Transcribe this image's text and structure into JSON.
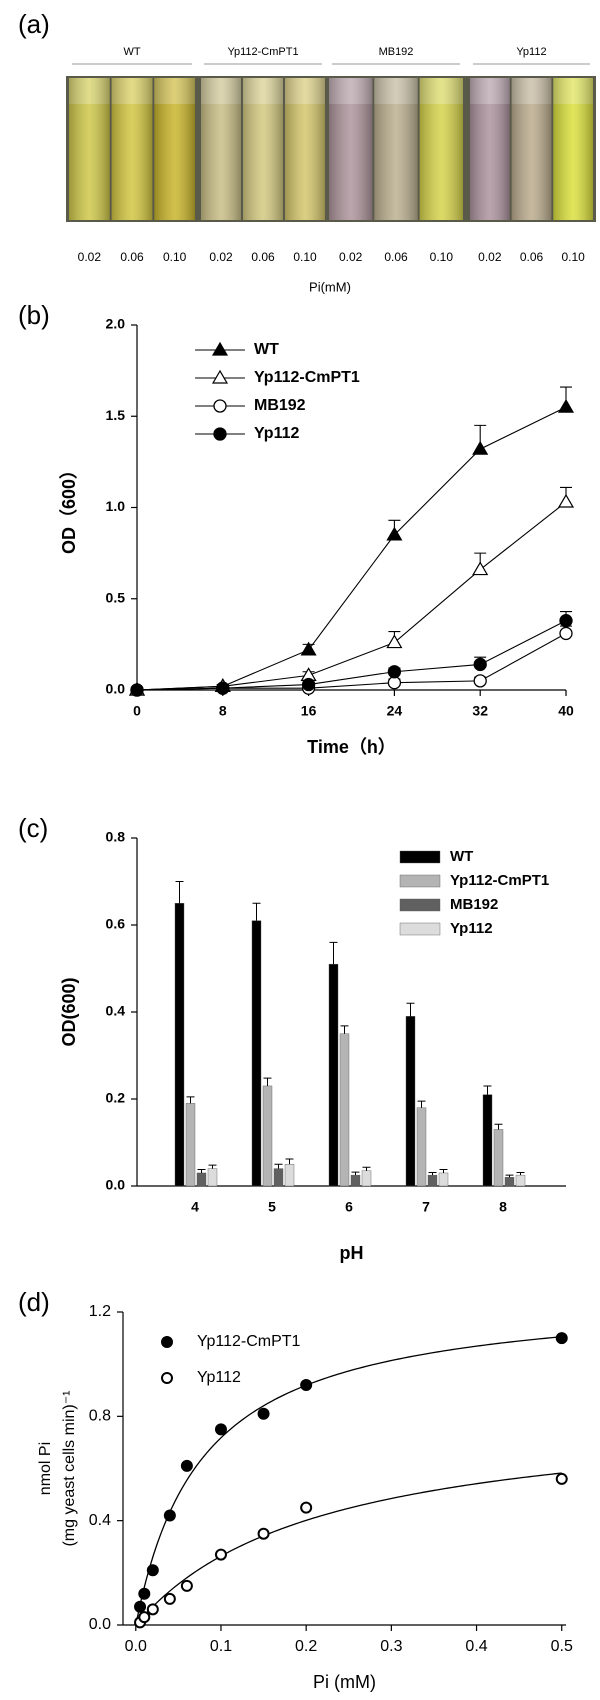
{
  "photo": {
    "panel": "(a)",
    "groups": [
      {
        "name": "WT",
        "concentrations": [
          "0.02",
          "0.06",
          "0.10"
        ]
      },
      {
        "name": "Yp112-CmPT1",
        "concentrations": [
          "0.02",
          "0.06",
          "0.10"
        ]
      },
      {
        "name": "MB192",
        "concentrations": [
          "0.02",
          "0.06",
          "0.10"
        ]
      },
      {
        "name": "Yp112",
        "concentrations": [
          "0.02",
          "0.06",
          "0.10"
        ]
      }
    ],
    "xlabel": "Pi(mM)"
  },
  "chart_data": [
    {
      "type": "line",
      "panel": "(b)",
      "xlabel": "Time（h）",
      "ylabel": "OD（600）",
      "x": [
        0,
        8,
        16,
        24,
        32,
        40
      ],
      "xlim": [
        0,
        40
      ],
      "xticks": [
        0,
        8,
        16,
        24,
        32,
        40
      ],
      "ylim": [
        0,
        2
      ],
      "yticks": [
        {
          "value": 0,
          "label": "0.0"
        },
        {
          "value": 0.5,
          "label": "0.5"
        },
        {
          "value": 1,
          "label": "1.0"
        },
        {
          "value": 1.5,
          "label": "1.5"
        },
        {
          "value": 2,
          "label": "2.0"
        }
      ],
      "series": [
        {
          "name": "WT",
          "color": "#000000",
          "marker": "triangle",
          "filled": true,
          "values": [
            0,
            0.02,
            0.22,
            0.85,
            1.32,
            1.55
          ],
          "errors": [
            0,
            0.01,
            0.03,
            0.08,
            0.13,
            0.11
          ]
        },
        {
          "name": "Yp112-CmPT1",
          "color": "#000000",
          "marker": "triangle",
          "filled": false,
          "values": [
            0,
            0.02,
            0.08,
            0.26,
            0.66,
            1.03
          ],
          "errors": [
            0,
            0.01,
            0.02,
            0.06,
            0.09,
            0.08
          ]
        },
        {
          "name": "MB192",
          "color": "#000000",
          "marker": "circle",
          "filled": false,
          "values": [
            0,
            0.01,
            0.01,
            0.04,
            0.05,
            0.31
          ],
          "errors": [
            0,
            0,
            0.01,
            0.02,
            0.02,
            0.04
          ]
        },
        {
          "name": "Yp112",
          "color": "#000000",
          "marker": "circle",
          "filled": true,
          "values": [
            0,
            0.01,
            0.03,
            0.1,
            0.14,
            0.38
          ],
          "errors": [
            0,
            0,
            0.01,
            0.02,
            0.04,
            0.05
          ]
        }
      ]
    },
    {
      "type": "bar",
      "panel": "(c)",
      "xlabel": "pH",
      "ylabel": "OD(600)",
      "categories": [
        "4",
        "5",
        "6",
        "7",
        "8"
      ],
      "ylim": [
        0,
        0.8
      ],
      "yticks": [
        {
          "value": 0,
          "label": "0.0"
        },
        0.2,
        0.4,
        0.6,
        0.8
      ],
      "series": [
        {
          "name": "WT",
          "color": "#000000",
          "values": [
            0.65,
            0.61,
            0.51,
            0.39,
            0.21
          ],
          "errors": [
            0.05,
            0.04,
            0.05,
            0.03,
            0.02
          ]
        },
        {
          "name": "Yp112-CmPT1",
          "color": "#b4b4b4",
          "values": [
            0.19,
            0.23,
            0.35,
            0.18,
            0.13
          ],
          "errors": [
            0.015,
            0.018,
            0.018,
            0.015,
            0.012
          ]
        },
        {
          "name": "MB192",
          "color": "#606060",
          "values": [
            0.03,
            0.04,
            0.025,
            0.025,
            0.02
          ],
          "errors": [
            0.008,
            0.01,
            0.007,
            0.006,
            0.005
          ]
        },
        {
          "name": "Yp112",
          "color": "#dcdcdc",
          "values": [
            0.04,
            0.05,
            0.035,
            0.03,
            0.025
          ],
          "errors": [
            0.008,
            0.012,
            0.008,
            0.008,
            0.006
          ]
        }
      ]
    },
    {
      "type": "scatter",
      "panel": "(d)",
      "xlabel": "Pi (mM)",
      "ylabel": [
        "nmol Pi",
        "(mg yeast cells  min)⁻¹"
      ],
      "xlim": [
        -0.015,
        0.505
      ],
      "xticks": [
        {
          "value": 0,
          "label": "0.0"
        },
        0.1,
        0.2,
        0.3,
        0.4,
        0.5
      ],
      "ylim": [
        0,
        1.2
      ],
      "yticks": [
        {
          "value": 0,
          "label": "0.0"
        },
        0.4,
        0.8,
        1.2
      ],
      "series": [
        {
          "name": "Yp112-CmPT1",
          "color": "#000000",
          "filled": true,
          "x": [
            0.005,
            0.01,
            0.02,
            0.04,
            0.06,
            0.1,
            0.15,
            0.2,
            0.5
          ],
          "y": [
            0.07,
            0.12,
            0.21,
            0.42,
            0.61,
            0.75,
            0.81,
            0.92,
            1.1
          ]
        },
        {
          "name": "Yp112",
          "color": "#000000",
          "filled": false,
          "x": [
            0.005,
            0.01,
            0.02,
            0.04,
            0.06,
            0.1,
            0.15,
            0.2,
            0.5
          ],
          "y": [
            0.01,
            0.03,
            0.06,
            0.1,
            0.15,
            0.27,
            0.35,
            0.45,
            0.56
          ]
        }
      ]
    }
  ]
}
